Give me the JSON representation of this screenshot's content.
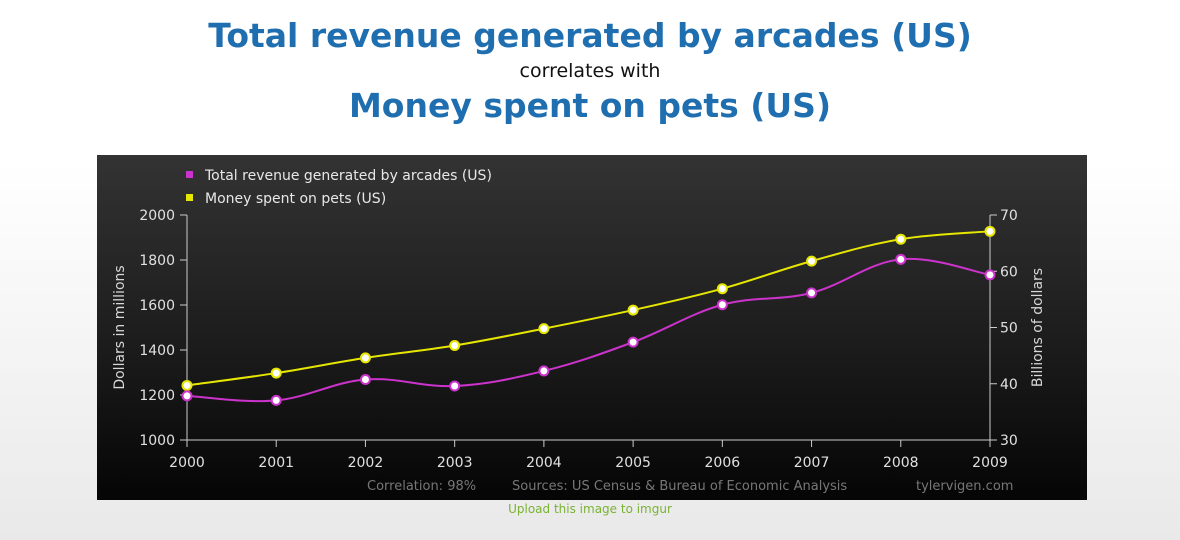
{
  "header": {
    "title_1": "Total revenue generated by arcades (US)",
    "connector": "correlates with",
    "title_2": "Money spent on pets (US)"
  },
  "chart_data": {
    "type": "line",
    "categories": [
      "2000",
      "2001",
      "2002",
      "2003",
      "2004",
      "2005",
      "2006",
      "2007",
      "2008",
      "2009"
    ],
    "series": [
      {
        "name": "Total revenue generated by arcades (US)",
        "axis": "left",
        "color": "#cc33cc",
        "values": [
          1196,
          1176,
          1269,
          1240,
          1307,
          1435,
          1601,
          1654,
          1803,
          1734
        ]
      },
      {
        "name": "Money spent on pets (US)",
        "axis": "right",
        "color": "#e6e600",
        "values": [
          39.7,
          41.9,
          44.6,
          46.8,
          49.8,
          53.1,
          56.9,
          61.8,
          65.7,
          67.1
        ]
      }
    ],
    "ylabel_left": "Dollars in millions",
    "ylim_left": [
      1000,
      2000
    ],
    "yticks_left": [
      1000,
      1200,
      1400,
      1600,
      1800,
      2000
    ],
    "ylabel_right": "Billions of dollars",
    "ylim_right": [
      30,
      70
    ],
    "yticks_right": [
      30,
      40,
      50,
      60,
      70
    ],
    "legend": "top-left",
    "grid": false,
    "footer": {
      "correlation": "Correlation: 98%",
      "sources": "Sources: US Census & Bureau of Economic Analysis",
      "site": "tylervigen.com"
    }
  },
  "upload_link": "Upload this image to imgur",
  "colors": {
    "title": "#1f6fb0",
    "axis": "#cccccc",
    "footer_text": "#777777",
    "link": "#7ab234"
  }
}
